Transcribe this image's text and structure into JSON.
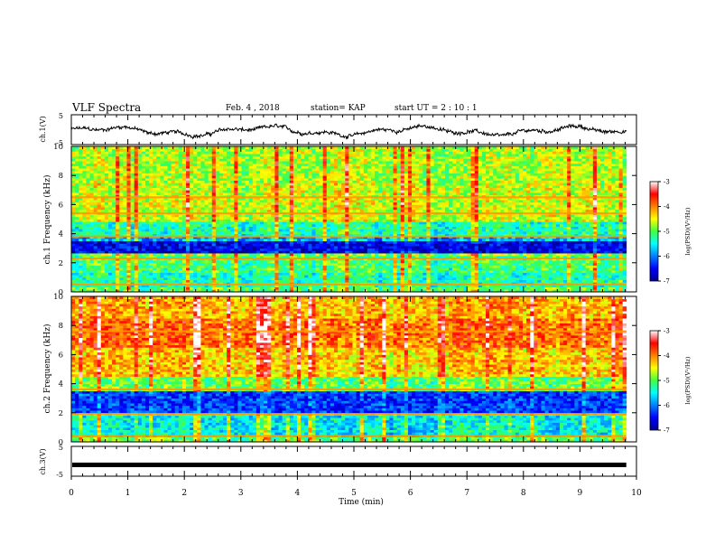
{
  "header": {
    "title": "VLF Spectra",
    "date": "Feb. 4 , 2018",
    "station": "station= KAP",
    "start": "start UT = 2 : 10 : 1"
  },
  "chart_data": [
    {
      "type": "line",
      "name": "ch1-waveform",
      "ylabel": "ch.1(V)",
      "ylim": [
        -5,
        5
      ],
      "yticks": [
        "5",
        "-5"
      ],
      "xlim": [
        0,
        10
      ],
      "level_range": [
        -2.5,
        1.5
      ]
    },
    {
      "type": "heatmap",
      "name": "ch1-spectrogram",
      "ylabel": "ch.1 Frequency (kHz)",
      "ylim": [
        0,
        10
      ],
      "yticks": [
        "0",
        "2",
        "4",
        "6",
        "8",
        "10"
      ],
      "xlim": [
        0,
        10
      ],
      "colorbar": {
        "label": "log(PSD)(V²/Hz)",
        "ticks": [
          "-3",
          "-4",
          "-5",
          "-6",
          "-7"
        ],
        "range": [
          -7,
          -3
        ]
      },
      "bands": [
        {
          "f": [
            0.0,
            0.3
          ],
          "level": -5.0
        },
        {
          "f": [
            0.3,
            1.3
          ],
          "level": -5.3
        },
        {
          "f": [
            1.3,
            2.5
          ],
          "level": -5.1
        },
        {
          "f": [
            2.5,
            2.7
          ],
          "level": -4.8
        },
        {
          "f": [
            2.7,
            3.5
          ],
          "level": -6.6
        },
        {
          "f": [
            3.5,
            3.8
          ],
          "level": -5.8
        },
        {
          "f": [
            3.8,
            4.8
          ],
          "level": -5.3
        },
        {
          "f": [
            4.8,
            7.5
          ],
          "level": -4.6
        },
        {
          "f": [
            7.5,
            10.0
          ],
          "level": -4.7
        }
      ],
      "lines_khz": [
        0.5,
        2.3,
        3.8,
        5.4,
        6.5
      ]
    },
    {
      "type": "heatmap",
      "name": "ch2-spectrogram",
      "ylabel": "ch.2 Frequency (kHz)",
      "ylim": [
        0,
        10
      ],
      "yticks": [
        "0",
        "2",
        "4",
        "6",
        "8",
        "10"
      ],
      "xlim": [
        0,
        10
      ],
      "colorbar": {
        "label": "log(PSD)(V²/Hz)",
        "ticks": [
          "-3",
          "-4",
          "-5",
          "-6",
          "-7"
        ],
        "range": [
          -7,
          -3
        ]
      },
      "bands": [
        {
          "f": [
            0.0,
            0.4
          ],
          "level": -5.0
        },
        {
          "f": [
            0.4,
            1.8
          ],
          "level": -5.5
        },
        {
          "f": [
            1.8,
            2.0
          ],
          "level": -4.9
        },
        {
          "f": [
            2.0,
            3.5
          ],
          "level": -6.3
        },
        {
          "f": [
            3.5,
            4.5
          ],
          "level": -5.0
        },
        {
          "f": [
            4.5,
            6.5
          ],
          "level": -4.3
        },
        {
          "f": [
            6.5,
            8.5
          ],
          "level": -3.9
        },
        {
          "f": [
            8.5,
            10.0
          ],
          "level": -4.2
        }
      ],
      "lines_khz": [
        0.4,
        1.9,
        3.6,
        7.6
      ]
    },
    {
      "type": "line",
      "name": "ch3-waveform",
      "ylabel": "ch.3(V)",
      "ylim": [
        -5,
        5
      ],
      "yticks": [
        "5",
        "-5"
      ],
      "xlim": [
        0,
        10
      ],
      "level": -1.2
    }
  ],
  "xaxis": {
    "label": "Time (min)",
    "ticks": [
      "0",
      "1",
      "2",
      "3",
      "4",
      "5",
      "6",
      "7",
      "8",
      "9",
      "10"
    ],
    "range": [
      0,
      10
    ],
    "data_end": 9.82
  }
}
